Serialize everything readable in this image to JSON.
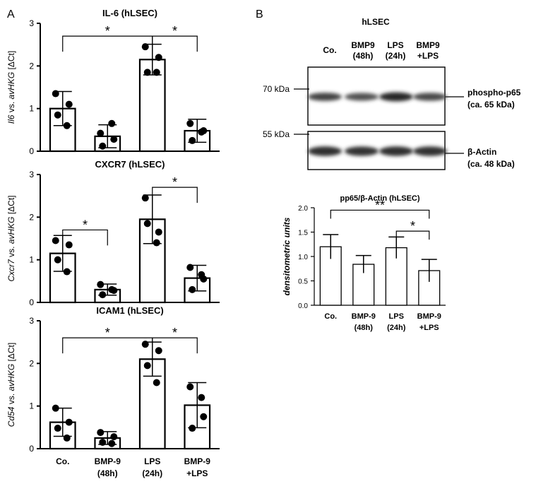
{
  "panels": {
    "a": "A",
    "b": "B"
  },
  "chart_data": [
    {
      "type": "bar",
      "title": "IL-6 (hLSEC)",
      "ylabel": [
        "Il6",
        " vs. ",
        "avHKG",
        " [ΔCt]"
      ],
      "categories": [
        "Co.",
        "BMP-9 (48h)",
        "LPS (24h)",
        "BMP-9 +LPS"
      ],
      "values": [
        1.0,
        0.35,
        2.15,
        0.48
      ],
      "errors": [
        0.4,
        0.27,
        0.36,
        0.27
      ],
      "points": [
        [
          1.35,
          1.1,
          0.85,
          0.6
        ],
        [
          0.42,
          0.28,
          0.12,
          0.65
        ],
        [
          2.45,
          2.2,
          1.85,
          1.85
        ],
        [
          0.65,
          0.48,
          0.25,
          0.45
        ]
      ],
      "ylim": [
        0,
        3
      ],
      "yticks": [
        "0",
        "1",
        "2",
        "3"
      ],
      "significance": [
        {
          "from": 0,
          "to": 2,
          "y": 2.7,
          "label": "*"
        },
        {
          "from": 2,
          "to": 3,
          "y": 2.7,
          "label": "*"
        }
      ]
    },
    {
      "type": "bar",
      "title": "CXCR7 (hLSEC)",
      "ylabel": [
        "Cxcr7",
        " vs. ",
        "avHKG",
        " [ΔCt]"
      ],
      "categories": [
        "Co.",
        "BMP-9 (48h)",
        "LPS (24h)",
        "BMP-9 +LPS"
      ],
      "values": [
        1.15,
        0.3,
        1.95,
        0.57
      ],
      "errors": [
        0.42,
        0.13,
        0.57,
        0.3
      ],
      "points": [
        [
          1.45,
          1.35,
          1.0,
          0.72
        ],
        [
          0.42,
          0.28,
          0.18,
          0.3
        ],
        [
          2.45,
          1.65,
          1.85,
          1.4
        ],
        [
          0.82,
          0.55,
          0.3,
          0.65
        ]
      ],
      "ylim": [
        0,
        3
      ],
      "yticks": [
        "0",
        "1",
        "2",
        "3"
      ],
      "significance": [
        {
          "from": 0,
          "to": 1,
          "y": 1.7,
          "label": "*"
        },
        {
          "from": 2,
          "to": 3,
          "y": 2.7,
          "label": "*"
        }
      ]
    },
    {
      "type": "bar",
      "title": "ICAM1 (hLSEC)",
      "ylabel": [
        "Cd54",
        " vs. ",
        "avHKG",
        " [ΔCt]"
      ],
      "categories": [
        "Co.",
        "BMP-9 (48h)",
        "LPS (24h)",
        "BMP-9 +LPS"
      ],
      "values": [
        0.62,
        0.25,
        2.1,
        1.02
      ],
      "errors": [
        0.33,
        0.15,
        0.4,
        0.53
      ],
      "points": [
        [
          0.95,
          0.62,
          0.48,
          0.25
        ],
        [
          0.38,
          0.28,
          0.15,
          0.12
        ],
        [
          2.45,
          2.3,
          1.95,
          1.55
        ],
        [
          1.45,
          0.75,
          0.48,
          1.2
        ]
      ],
      "ylim": [
        0,
        3
      ],
      "yticks": [
        "0",
        "1",
        "2",
        "3"
      ],
      "significance": [
        {
          "from": 0,
          "to": 2,
          "y": 2.6,
          "label": "*"
        },
        {
          "from": 2,
          "to": 3,
          "y": 2.6,
          "label": "*"
        }
      ]
    },
    {
      "type": "bar",
      "title": "pp65/β-Actin (hLSEC)",
      "ylabel": "densitometric units",
      "categories": [
        "Co.",
        "BMP-9 (48h)",
        "LPS (24h)",
        "BMP-9 +LPS"
      ],
      "values": [
        1.2,
        0.84,
        1.18,
        0.71
      ],
      "errors": [
        0.25,
        0.18,
        0.22,
        0.23
      ],
      "ylim": [
        0,
        2.0
      ],
      "yticks": [
        "0.0",
        "0.5",
        "1.0",
        "1.5",
        "2.0"
      ],
      "significance": [
        {
          "from": 0,
          "to": 3,
          "y": 1.95,
          "label": "**"
        },
        {
          "from": 2,
          "to": 3,
          "y": 1.52,
          "label": "*"
        }
      ]
    }
  ],
  "blot": {
    "cell_label": "hLSEC",
    "lanes": [
      "Co.",
      "BMP9 (48h)",
      "LPS (24h)",
      "BMP9 +LPS"
    ],
    "markers": [
      "70 kDa",
      "55 kDa"
    ],
    "bands": [
      {
        "name": "phospho-p65",
        "size": "(ca. 65 kDa)",
        "intensity": [
          0.78,
          0.66,
          1.0,
          0.72
        ]
      },
      {
        "name": "β-Actin",
        "size": "(ca. 48 kDa)",
        "intensity": [
          0.95,
          0.92,
          0.94,
          0.93
        ]
      }
    ]
  }
}
